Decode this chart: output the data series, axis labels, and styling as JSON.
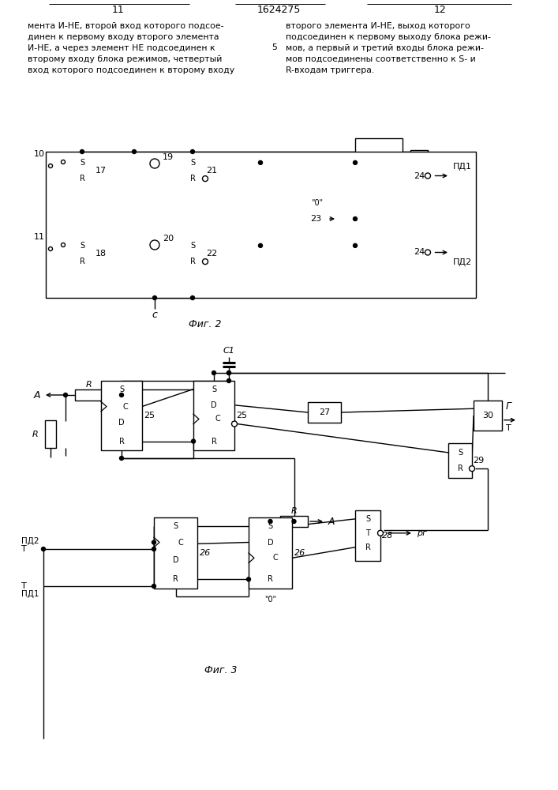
{
  "bg": "#ffffff",
  "lc": "#000000",
  "fig2_label": "Фиг. 2",
  "fig3_label": "Фиг. 3",
  "text_col1": "мента И-НЕ, второй вход которого подсое-\nдинен к первому входу второго элемента\nИ-НЕ, а через элемент НЕ подсоединен к\nвторому входу блока режимов, четвертый\nвход которого подсоединен к второму входу",
  "text_col2": "второго элемента И-НЕ, выход которого\nподсоединен к первому выходу блока режи-\nмов, а первый и третий входы блока режи-\nмов подсоединены соответственно к S- и\nR-входам триггера.",
  "num5": "5"
}
